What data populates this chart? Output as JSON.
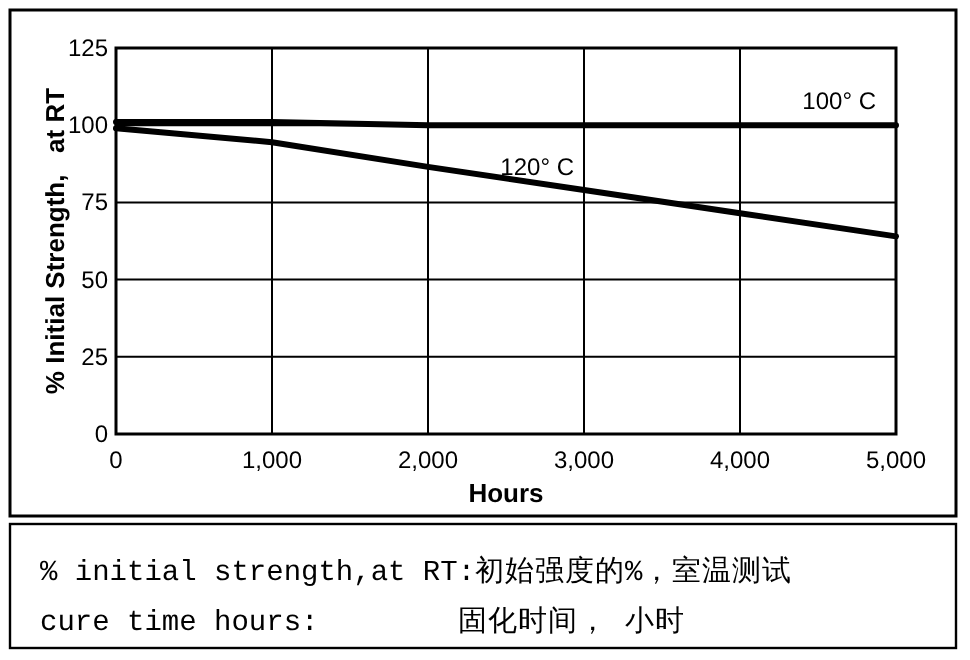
{
  "chart_data": {
    "type": "line",
    "xlabel": "Hours",
    "ylabel": "% Initial Strength,   at RT",
    "x": [
      0,
      1000,
      2000,
      3000,
      4000,
      5000
    ],
    "series": [
      {
        "name": "100° C",
        "color": "#000000",
        "values": [
          101,
          101,
          100,
          100,
          100,
          100
        ]
      },
      {
        "name": "120° C",
        "color": "#000000",
        "values": [
          99,
          94.5,
          86.5,
          79,
          71.5,
          64
        ]
      }
    ],
    "xlim": [
      0,
      5000
    ],
    "ylim": [
      0,
      125
    ],
    "xticks": [
      0,
      {
        "value": 1000,
        "label": "1,000"
      },
      {
        "value": 2000,
        "label": "2,000"
      },
      {
        "value": 3000,
        "label": "3,000"
      },
      {
        "value": 4000,
        "label": "4,000"
      },
      {
        "value": 5000,
        "label": "5,000"
      }
    ],
    "yticks": [
      0,
      25,
      50,
      75,
      100,
      125
    ],
    "grid": true,
    "marker": "none",
    "line_style": "solid",
    "annotations": [
      "% initial strength,at RT:初始强度的%，室温测试",
      "cure time hours:        固化时间， 小时"
    ]
  }
}
